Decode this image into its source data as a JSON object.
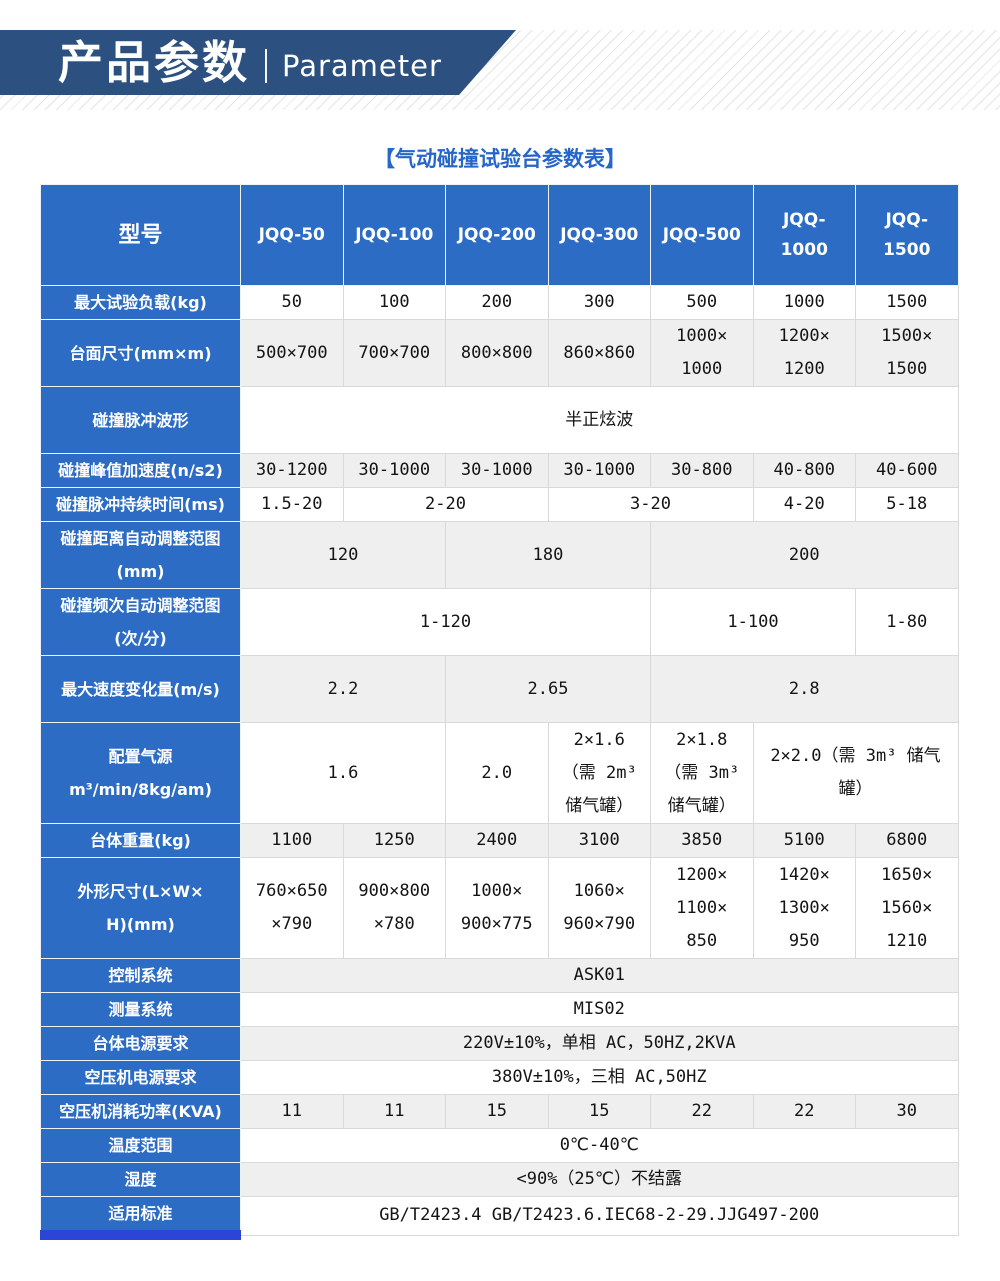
{
  "banner": {
    "title_cn": "产品参数",
    "title_en": "Parameter"
  },
  "page": {
    "table_title": "【气动碰撞试验台参数表】"
  },
  "colors": {
    "banner_navy": "#2c5180",
    "table_blue": "#2c6cc4",
    "accent_blue": "#2b46d6",
    "title_blue": "#2666c8",
    "row_alt_gray": "#efefef",
    "grid_line": "#d9d9d9",
    "text_dark": "#141414",
    "hatch_gray": "#e4e4e4"
  },
  "table": {
    "header": {
      "label": "型号",
      "models": [
        "JQQ-50",
        "JQQ-100",
        "JQQ-200",
        "JQQ-300",
        "JQQ-500",
        "JQQ-\n1000",
        "JQQ-\n1500"
      ]
    },
    "rows": [
      {
        "label": "最大试验负载(kg)",
        "cells": [
          {
            "t": "50"
          },
          {
            "t": "100"
          },
          {
            "t": "200"
          },
          {
            "t": "300"
          },
          {
            "t": "500"
          },
          {
            "t": "1000"
          },
          {
            "t": "1500"
          }
        ]
      },
      {
        "label": "台面尺寸(mm×m)",
        "cells": [
          {
            "t": "500×700"
          },
          {
            "t": "700×700"
          },
          {
            "t": "800×800"
          },
          {
            "t": "860×860"
          },
          {
            "t": "1000×\n1000"
          },
          {
            "t": "1200×\n1200"
          },
          {
            "t": "1500×\n1500"
          }
        ]
      },
      {
        "label": "碰撞脉冲波形",
        "cells": [
          {
            "t": "半正炫波",
            "s": 7
          }
        ]
      },
      {
        "label": "碰撞峰值加速度(n/s2)",
        "cells": [
          {
            "t": "30-1200"
          },
          {
            "t": "30-1000"
          },
          {
            "t": "30-1000"
          },
          {
            "t": "30-1000"
          },
          {
            "t": "30-800"
          },
          {
            "t": "40-800"
          },
          {
            "t": "40-600"
          }
        ]
      },
      {
        "label": "碰撞脉冲持续时间(ms)",
        "cells": [
          {
            "t": "1.5-20"
          },
          {
            "t": "2-20",
            "s": 2
          },
          {
            "t": "3-20",
            "s": 2
          },
          {
            "t": "4-20"
          },
          {
            "t": "5-18"
          }
        ]
      },
      {
        "label": "碰撞距离自动调整范图\n(mm)",
        "cells": [
          {
            "t": "120",
            "s": 2
          },
          {
            "t": "180",
            "s": 2
          },
          {
            "t": "200",
            "s": 3
          }
        ]
      },
      {
        "label": "碰撞频次自动调整范图\n(次/分)",
        "cells": [
          {
            "t": "1-120",
            "s": 4
          },
          {
            "t": "1-100",
            "s": 2
          },
          {
            "t": "1-80"
          }
        ]
      },
      {
        "label": "最大速度变化量(m/s)",
        "cells": [
          {
            "t": "2.2",
            "s": 2
          },
          {
            "t": "2.65",
            "s": 2
          },
          {
            "t": "2.8",
            "s": 3
          }
        ]
      },
      {
        "label": "配置气源\nm³/min/8kg/am)",
        "cells": [
          {
            "t": "1.6",
            "s": 2
          },
          {
            "t": "2.0"
          },
          {
            "t": "2×1.6\n（需 2m³\n储气罐）"
          },
          {
            "t": "2×1.8\n（需 3m³\n储气罐）"
          },
          {
            "t": "2×2.0（需 3m³ 储气\n罐）",
            "s": 2
          }
        ]
      },
      {
        "label": "台体重量(kg)",
        "cells": [
          {
            "t": "1100"
          },
          {
            "t": "1250"
          },
          {
            "t": "2400"
          },
          {
            "t": "3100"
          },
          {
            "t": "3850"
          },
          {
            "t": "5100"
          },
          {
            "t": "6800"
          }
        ]
      },
      {
        "label": "外形尺寸(L×W×\nH)(mm)",
        "cells": [
          {
            "t": "760×650\n×790"
          },
          {
            "t": "900×800\n×780"
          },
          {
            "t": "1000×\n900×775"
          },
          {
            "t": "1060×\n960×790"
          },
          {
            "t": "1200×\n1100×\n850"
          },
          {
            "t": "1420×\n1300×\n950"
          },
          {
            "t": "1650×\n1560×\n1210"
          }
        ]
      },
      {
        "label": "控制系统",
        "cells": [
          {
            "t": "ASK01",
            "s": 7
          }
        ]
      },
      {
        "label": "测量系统",
        "cells": [
          {
            "t": "MIS02",
            "s": 7
          }
        ]
      },
      {
        "label": "台体电源要求",
        "cells": [
          {
            "t": "220V±10%，单相 AC，50HZ,2KVA",
            "s": 7
          }
        ]
      },
      {
        "label": "空压机电源要求",
        "cells": [
          {
            "t": "380V±10%，三相 AC,50HZ",
            "s": 7
          }
        ]
      },
      {
        "label": "空压机消耗功率(KVA)",
        "cells": [
          {
            "t": "11"
          },
          {
            "t": "11"
          },
          {
            "t": "15"
          },
          {
            "t": "15"
          },
          {
            "t": "22"
          },
          {
            "t": "22"
          },
          {
            "t": "30"
          }
        ]
      },
      {
        "label": "温度范围",
        "cells": [
          {
            "t": "0℃-40℃",
            "s": 7
          }
        ]
      },
      {
        "label": "湿度",
        "cells": [
          {
            "t": "<90%（25℃）不结露",
            "s": 7
          }
        ]
      },
      {
        "label": "适用标准",
        "cells": [
          {
            "t": "GB/T2423.4 GB/T2423.6.IEC68-2-29.JJG497-200",
            "s": 7
          }
        ]
      }
    ]
  }
}
